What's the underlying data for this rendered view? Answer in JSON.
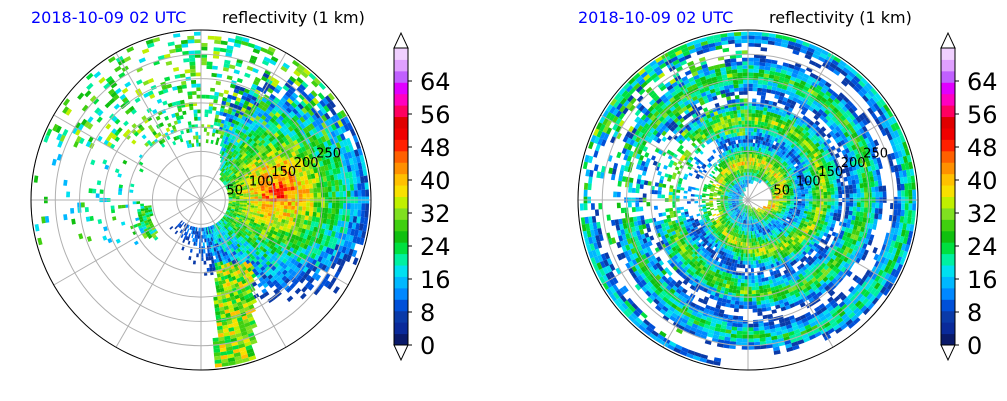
{
  "chart_data": [
    {
      "type": "heatmap",
      "title_left": "2018-10-09 02 UTC",
      "title_right": "reflectivity (1 km)",
      "projection": "polar",
      "radial_ticks": [
        "50",
        "100",
        "150",
        "200",
        "250"
      ],
      "radial_range": [
        0,
        350
      ],
      "grid": true,
      "colorbar": {
        "ticks": [
          "0",
          "8",
          "16",
          "24",
          "32",
          "40",
          "48",
          "56",
          "64"
        ],
        "range": [
          0,
          72
        ],
        "extend": "both"
      }
    },
    {
      "type": "heatmap",
      "title_left": "2018-10-09 02 UTC",
      "title_right": "reflectivity (1 km)",
      "projection": "polar",
      "radial_ticks": [
        "50",
        "100",
        "150",
        "200",
        "250"
      ],
      "radial_range": [
        0,
        350
      ],
      "grid": true,
      "colorbar": {
        "ticks": [
          "0",
          "8",
          "16",
          "24",
          "32",
          "40",
          "48",
          "56",
          "64"
        ],
        "range": [
          0,
          72
        ],
        "extend": "both"
      }
    }
  ],
  "colors": {
    "title_date": "#0000ff",
    "scale": [
      "#0a1a6a",
      "#0a2a9a",
      "#0a3aa8",
      "#0050d8",
      "#0088ff",
      "#00b8ff",
      "#00e0f0",
      "#00f0a0",
      "#00e040",
      "#10c010",
      "#40d010",
      "#80e020",
      "#c0f000",
      "#f8e000",
      "#ffc000",
      "#ff9000",
      "#ff6000",
      "#ff2000",
      "#f00000",
      "#e00000",
      "#ff0060",
      "#ff00c0",
      "#e000ff",
      "#c060ff",
      "#e0a0ff",
      "#f0d0ff"
    ]
  }
}
